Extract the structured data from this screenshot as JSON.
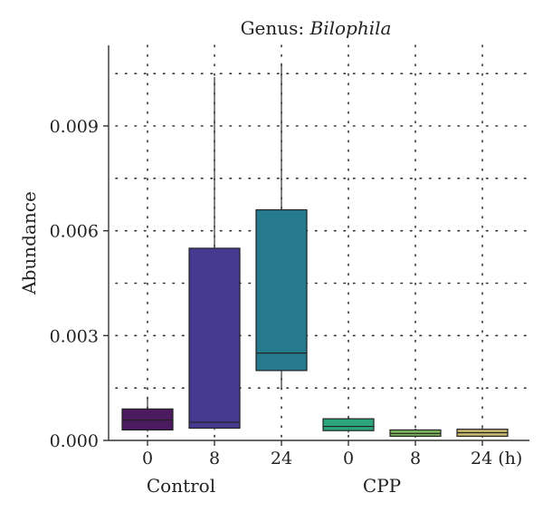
{
  "chart_data": {
    "type": "box",
    "title_prefix": "Genus: ",
    "title_genus": "Bilophila",
    "ylabel": "Abundance",
    "ylim": [
      0.0,
      0.011
    ],
    "yticks": [
      {
        "value": 0.0,
        "label": "0.000"
      },
      {
        "value": 0.003,
        "label": "0.003"
      },
      {
        "value": 0.006,
        "label": "0.006"
      },
      {
        "value": 0.009,
        "label": "0.009"
      }
    ],
    "minor_grid_y": [
      0.0015,
      0.0045,
      0.0075,
      0.0105
    ],
    "grid": true,
    "categories": [
      "0",
      "8",
      "24",
      "0",
      "8",
      "24 (h)"
    ],
    "groups": [
      {
        "label": "Control",
        "center_index": 0.5
      },
      {
        "label": "CPP",
        "center_index": 3.5
      }
    ],
    "boxes": [
      {
        "category": "0",
        "group": "Control",
        "q1": 0.0003,
        "median": 0.00058,
        "q3": 0.0009,
        "whisker_low": 0.00025,
        "whisker_high": 0.00125,
        "color": "#4b1a5f"
      },
      {
        "category": "8",
        "group": "Control",
        "q1": 0.00035,
        "median": 0.00052,
        "q3": 0.0055,
        "whisker_low": 0.0003,
        "whisker_high": 0.0104,
        "color": "#443a90"
      },
      {
        "category": "24",
        "group": "Control",
        "q1": 0.002,
        "median": 0.0025,
        "q3": 0.0066,
        "whisker_low": 0.00145,
        "whisker_high": 0.0108,
        "color": "#267a8e"
      },
      {
        "category": "0",
        "group": "CPP",
        "q1": 0.00028,
        "median": 0.0004,
        "q3": 0.00062,
        "whisker_low": 0.00022,
        "whisker_high": 0.00065,
        "color": "#2aa57c"
      },
      {
        "category": "8",
        "group": "CPP",
        "q1": 0.00012,
        "median": 0.0002,
        "q3": 0.0003,
        "whisker_low": 8e-05,
        "whisker_high": 0.00034,
        "color": "#7cb45a"
      },
      {
        "category": "24 (h)",
        "group": "CPP",
        "q1": 0.00012,
        "median": 0.00022,
        "q3": 0.00032,
        "whisker_low": 8e-05,
        "whisker_high": 0.00036,
        "color": "#c8b96c"
      }
    ]
  }
}
